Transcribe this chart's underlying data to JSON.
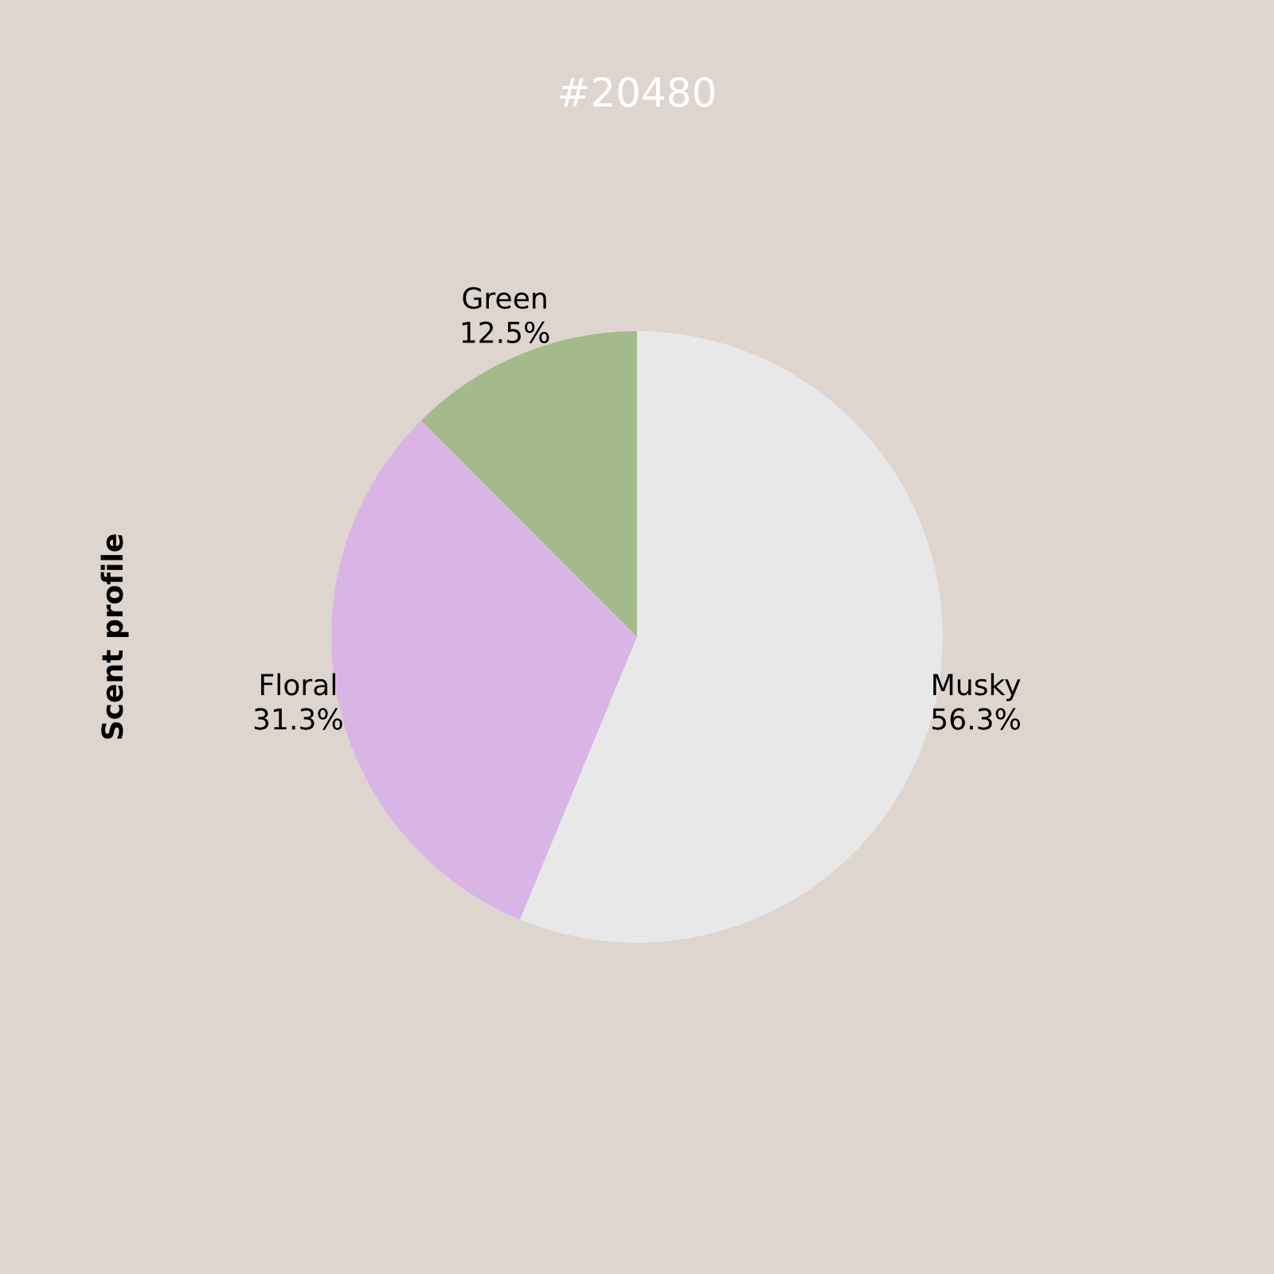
{
  "chart_data": {
    "type": "pie",
    "subtitle": "#20480",
    "ylabel": "Scent profile",
    "categories": [
      "Green",
      "Floral",
      "Musky"
    ],
    "values": [
      12.5,
      31.3,
      56.3
    ],
    "colors": [
      "#a3ba8a",
      "#d9b5e6",
      "#e8e8e8"
    ],
    "value_labels": [
      "12.5%",
      "31.3%",
      "56.3%"
    ]
  }
}
